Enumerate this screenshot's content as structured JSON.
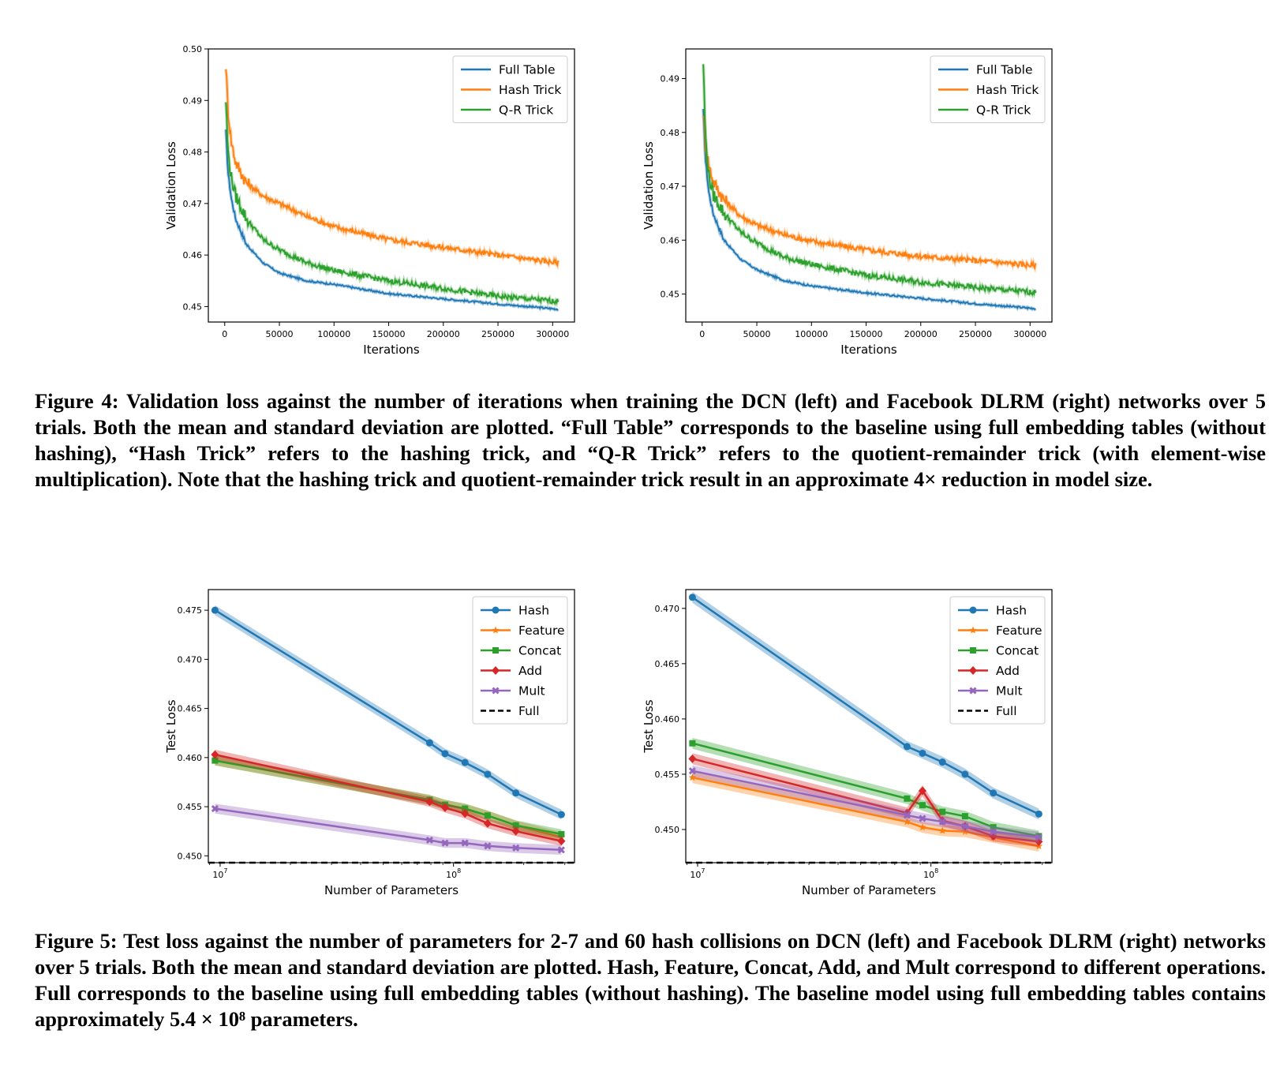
{
  "figure4": {
    "caption_label": "Figure 4:",
    "caption_text": "Validation loss against the number of iterations when training the DCN (left) and Facebook DLRM (right) networks over 5 trials. Both the mean and standard deviation are plotted. “Full Table” corresponds to the baseline using full embedding tables (without hashing), “Hash Trick” refers to the hashing trick, and “Q-R Trick” refers to the quotient-remainder trick (with element-wise multiplication). Note that the hashing trick and quotient-remainder trick result in an approximate 4× reduction in model size."
  },
  "figure5": {
    "caption_label": "Figure 5:",
    "caption_text": "Test loss against the number of parameters for 2-7 and 60 hash collisions on DCN (left) and Facebook DLRM (right) networks over 5 trials. Both the mean and standard deviation are plotted. Hash, Feature, Concat, Add, and Mult correspond to different operations. Full corresponds to the baseline using full embedding tables (without hashing). The baseline model using full embedding tables contains approximately 5.4 × 10⁸ parameters."
  },
  "colors": {
    "blue": "#1f77b4",
    "orange": "#ff7f0e",
    "green": "#2ca02c",
    "red": "#d62728",
    "purple": "#9467bd",
    "black": "#000000"
  },
  "chart_data": [
    {
      "id": "fig4-left",
      "type": "line",
      "title": "",
      "xlabel": "Iterations",
      "ylabel": "Validation Loss",
      "xlim": [
        -15000,
        320000
      ],
      "ylim": [
        0.447,
        0.5
      ],
      "xticks": [
        0,
        50000,
        100000,
        150000,
        200000,
        250000,
        300000
      ],
      "xtick_labels": [
        "0",
        "50000",
        "100000",
        "150000",
        "200000",
        "250000",
        "300000"
      ],
      "yticks": [
        0.45,
        0.46,
        0.47,
        0.48,
        0.49,
        0.5
      ],
      "ytick_labels": [
        "0.45",
        "0.46",
        "0.47",
        "0.48",
        "0.49",
        "0.50"
      ],
      "legend": "top-right",
      "series": [
        {
          "name": "Full Table",
          "color": "#1f77b4",
          "x": [
            1000,
            3000,
            6000,
            10000,
            20000,
            35000,
            50000,
            75000,
            100000,
            150000,
            200000,
            250000,
            305000
          ],
          "values": [
            0.484,
            0.476,
            0.471,
            0.467,
            0.462,
            0.4585,
            0.4565,
            0.455,
            0.4543,
            0.4525,
            0.4515,
            0.4505,
            0.4495
          ]
        },
        {
          "name": "Hash Trick",
          "color": "#ff7f0e",
          "x": [
            1000,
            3000,
            6000,
            10000,
            20000,
            35000,
            50000,
            75000,
            100000,
            150000,
            200000,
            250000,
            305000
          ],
          "values": [
            0.497,
            0.488,
            0.482,
            0.478,
            0.474,
            0.4715,
            0.47,
            0.4675,
            0.4655,
            0.463,
            0.4615,
            0.46,
            0.4585
          ]
        },
        {
          "name": "Q-R Trick",
          "color": "#2ca02c",
          "x": [
            1000,
            3000,
            6000,
            10000,
            20000,
            35000,
            50000,
            75000,
            100000,
            150000,
            200000,
            250000,
            305000
          ],
          "values": [
            0.49,
            0.48,
            0.475,
            0.4715,
            0.467,
            0.463,
            0.461,
            0.4585,
            0.457,
            0.455,
            0.4535,
            0.452,
            0.451
          ]
        }
      ]
    },
    {
      "id": "fig4-right",
      "type": "line",
      "title": "",
      "xlabel": "Iterations",
      "ylabel": "Validation Loss",
      "xlim": [
        -15000,
        320000
      ],
      "ylim": [
        0.4448,
        0.4955
      ],
      "xticks": [
        0,
        50000,
        100000,
        150000,
        200000,
        250000,
        300000
      ],
      "xtick_labels": [
        "0",
        "50000",
        "100000",
        "150000",
        "200000",
        "250000",
        "300000"
      ],
      "yticks": [
        0.45,
        0.46,
        0.47,
        0.48,
        0.49
      ],
      "ytick_labels": [
        "0.45",
        "0.46",
        "0.47",
        "0.48",
        "0.49"
      ],
      "legend": "top-right",
      "series": [
        {
          "name": "Full Table",
          "color": "#1f77b4",
          "x": [
            1000,
            3000,
            6000,
            10000,
            20000,
            35000,
            50000,
            75000,
            100000,
            150000,
            200000,
            250000,
            305000
          ],
          "values": [
            0.484,
            0.475,
            0.469,
            0.465,
            0.46,
            0.4565,
            0.4545,
            0.4525,
            0.4515,
            0.4502,
            0.4492,
            0.4482,
            0.4473
          ]
        },
        {
          "name": "Hash Trick",
          "color": "#ff7f0e",
          "x": [
            1000,
            3000,
            6000,
            10000,
            20000,
            35000,
            50000,
            75000,
            100000,
            150000,
            200000,
            250000,
            305000
          ],
          "values": [
            0.484,
            0.478,
            0.474,
            0.471,
            0.4675,
            0.4645,
            0.4628,
            0.461,
            0.4598,
            0.4582,
            0.457,
            0.4562,
            0.4553
          ]
        },
        {
          "name": "Q-R Trick",
          "color": "#2ca02c",
          "x": [
            1000,
            3000,
            6000,
            10000,
            20000,
            35000,
            50000,
            75000,
            100000,
            150000,
            200000,
            250000,
            305000
          ],
          "values": [
            0.493,
            0.479,
            0.472,
            0.4685,
            0.465,
            0.4615,
            0.4595,
            0.4568,
            0.4555,
            0.4535,
            0.4522,
            0.4512,
            0.4503
          ]
        }
      ]
    },
    {
      "id": "fig5-left",
      "type": "line",
      "title": "",
      "xlabel": "Number of Parameters",
      "ylabel": "Test Loss",
      "xscale": "log",
      "xlim": [
        8900000.0,
        330000000.0
      ],
      "ylim": [
        0.4493,
        0.4771
      ],
      "xticks": [
        10000000.0,
        100000000.0
      ],
      "xtick_labels": [
        "10",
        "10"
      ],
      "xtick_exponents": [
        "7",
        "8"
      ],
      "yticks": [
        0.45,
        0.455,
        0.46,
        0.465,
        0.47,
        0.475
      ],
      "ytick_labels": [
        "0.450",
        "0.455",
        "0.460",
        "0.465",
        "0.470",
        "0.475"
      ],
      "legend": "top-right",
      "baseline": {
        "name": "Full",
        "value": 0.4493
      },
      "series": [
        {
          "name": "Hash",
          "color": "#1f77b4",
          "marker": "circle",
          "x": [
            9500000.0,
            79000000.0,
            92000000.0,
            112000000.0,
            140000000.0,
            185000000.0,
            290000000.0
          ],
          "values": [
            0.475,
            0.4615,
            0.4604,
            0.4595,
            0.4583,
            0.4564,
            0.4542
          ]
        },
        {
          "name": "Feature",
          "color": "#ff7f0e",
          "marker": "star",
          "x": [
            9500000.0,
            79000000.0,
            92000000.0,
            112000000.0,
            140000000.0,
            185000000.0,
            290000000.0
          ],
          "values": [
            0.4597,
            0.4557,
            0.4552,
            0.4548,
            0.4541,
            0.4531,
            0.4519
          ]
        },
        {
          "name": "Concat",
          "color": "#2ca02c",
          "marker": "square",
          "x": [
            9500000.0,
            79000000.0,
            92000000.0,
            112000000.0,
            140000000.0,
            185000000.0,
            290000000.0
          ],
          "values": [
            0.4597,
            0.4557,
            0.4552,
            0.4548,
            0.4541,
            0.4531,
            0.4522
          ]
        },
        {
          "name": "Add",
          "color": "#d62728",
          "marker": "diamond",
          "x": [
            9500000.0,
            79000000.0,
            92000000.0,
            112000000.0,
            140000000.0,
            185000000.0,
            290000000.0
          ],
          "values": [
            0.4603,
            0.4555,
            0.4549,
            0.4543,
            0.4533,
            0.4525,
            0.4515
          ]
        },
        {
          "name": "Mult",
          "color": "#9467bd",
          "marker": "cross",
          "x": [
            9500000.0,
            79000000.0,
            92000000.0,
            112000000.0,
            140000000.0,
            185000000.0,
            290000000.0
          ],
          "values": [
            0.4548,
            0.4516,
            0.4513,
            0.4513,
            0.451,
            0.4508,
            0.4506
          ]
        }
      ]
    },
    {
      "id": "fig5-right",
      "type": "line",
      "title": "",
      "xlabel": "Number of Parameters",
      "ylabel": "Test Loss",
      "xscale": "log",
      "xlim": [
        8900000.0,
        330000000.0
      ],
      "ylim": [
        0.447,
        0.4717
      ],
      "xticks": [
        10000000.0,
        100000000.0
      ],
      "xtick_labels": [
        "10",
        "10"
      ],
      "xtick_exponents": [
        "7",
        "8"
      ],
      "yticks": [
        0.45,
        0.455,
        0.46,
        0.465,
        0.47
      ],
      "ytick_labels": [
        "0.450",
        "0.455",
        "0.460",
        "0.465",
        "0.470"
      ],
      "legend": "top-right",
      "baseline": {
        "name": "Full",
        "value": 0.447
      },
      "series": [
        {
          "name": "Hash",
          "color": "#1f77b4",
          "marker": "circle",
          "x": [
            9500000.0,
            79000000.0,
            92000000.0,
            112000000.0,
            140000000.0,
            185000000.0,
            290000000.0
          ],
          "values": [
            0.471,
            0.4575,
            0.4569,
            0.4561,
            0.455,
            0.4533,
            0.4514
          ]
        },
        {
          "name": "Feature",
          "color": "#ff7f0e",
          "marker": "star",
          "x": [
            9500000.0,
            79000000.0,
            92000000.0,
            112000000.0,
            140000000.0,
            185000000.0,
            290000000.0
          ],
          "values": [
            0.4547,
            0.4507,
            0.4502,
            0.4499,
            0.4498,
            0.4493,
            0.4485
          ]
        },
        {
          "name": "Concat",
          "color": "#2ca02c",
          "marker": "square",
          "x": [
            9500000.0,
            79000000.0,
            92000000.0,
            112000000.0,
            140000000.0,
            185000000.0,
            290000000.0
          ],
          "values": [
            0.4578,
            0.4528,
            0.4522,
            0.4516,
            0.4512,
            0.4502,
            0.4494
          ]
        },
        {
          "name": "Add",
          "color": "#d62728",
          "marker": "diamond",
          "x": [
            9500000.0,
            79000000.0,
            92000000.0,
            112000000.0,
            140000000.0,
            185000000.0,
            290000000.0
          ],
          "values": [
            0.4564,
            0.4515,
            0.4535,
            0.4508,
            0.4503,
            0.4494,
            0.4489
          ]
        },
        {
          "name": "Mult",
          "color": "#9467bd",
          "marker": "cross",
          "x": [
            9500000.0,
            79000000.0,
            92000000.0,
            112000000.0,
            140000000.0,
            185000000.0,
            290000000.0
          ],
          "values": [
            0.4553,
            0.4513,
            0.451,
            0.4507,
            0.4503,
            0.4498,
            0.4493
          ]
        }
      ]
    }
  ]
}
